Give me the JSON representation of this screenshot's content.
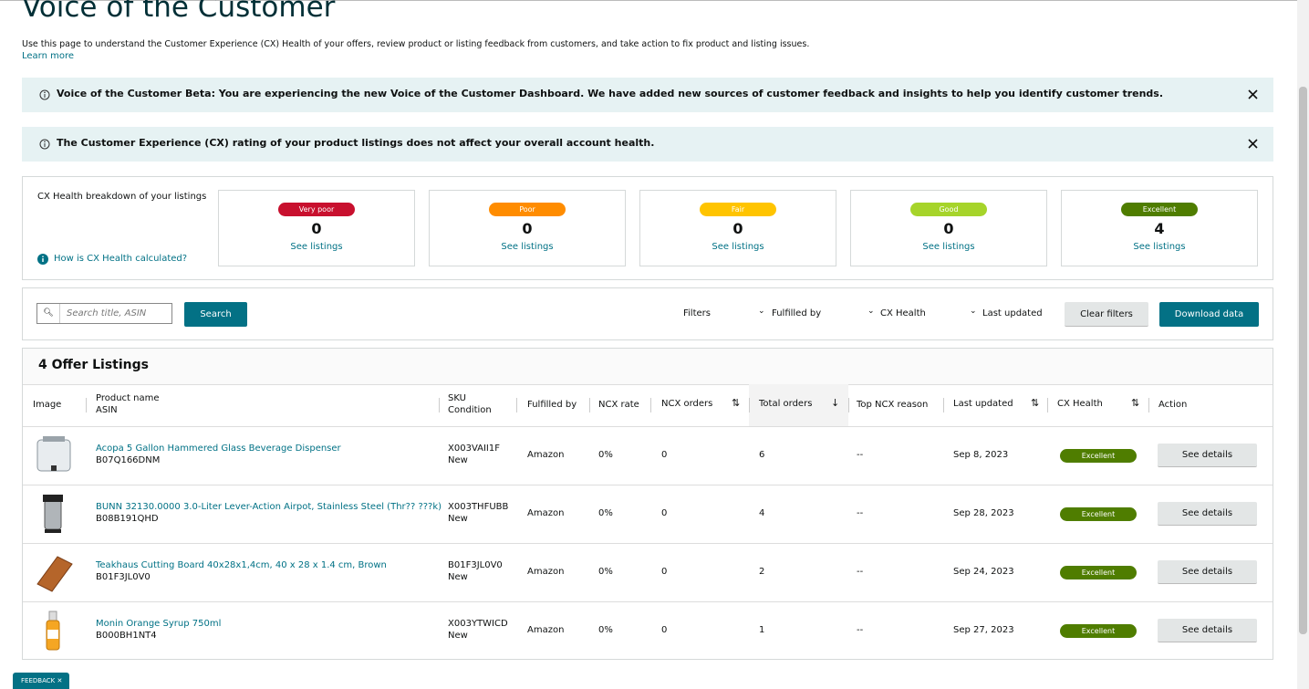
{
  "header": {
    "title": "Voice of the Customer",
    "description": "Use this page to understand the Customer Experience (CX) Health of your offers, review product or listing feedback from customers, and take action to fix product and listing issues.",
    "learn_more": "Learn more"
  },
  "banners": [
    {
      "text": "Voice of the Customer Beta: You are experiencing the new Voice of the Customer Dashboard. We have added new sources of customer feedback and insights to help you identify customer trends."
    },
    {
      "text": "The Customer Experience (CX) rating of your product listings does not affect your overall account health."
    }
  ],
  "breakdown": {
    "label": "CX Health breakdown of your listings",
    "help": "How is CX Health calculated?",
    "cards": [
      {
        "rating": "Very poor",
        "count": 0,
        "link": "See listings",
        "color": "#c8102e"
      },
      {
        "rating": "Poor",
        "count": 0,
        "link": "See listings",
        "color": "#ff8c00"
      },
      {
        "rating": "Fair",
        "count": 0,
        "link": "See listings",
        "color": "#ffc400"
      },
      {
        "rating": "Good",
        "count": 0,
        "link": "See listings",
        "color": "#a6d42a"
      },
      {
        "rating": "Excellent",
        "count": 4,
        "link": "See listings",
        "color": "#4f7d00"
      }
    ]
  },
  "toolbar": {
    "search_placeholder": "Search title, ASIN",
    "search_button": "Search",
    "filters": "Filters",
    "fulfilled_by": "Fulfilled by",
    "cx_health": "CX Health",
    "last_updated": "Last updated",
    "clear": "Clear filters",
    "download": "Download data"
  },
  "table": {
    "title": "4 Offer Listings",
    "columns": [
      "Image",
      "Product name",
      "ASIN",
      "SKU",
      "Condition",
      "Fulfilled by",
      "NCX rate",
      "NCX orders",
      "Total orders",
      "Top NCX reason",
      "Last updated",
      "CX Health",
      "Action"
    ],
    "rows": [
      {
        "name": "Acopa 5 Gallon Hammered Glass Beverage Dispenser",
        "asin": "B07Q166DNM",
        "sku": "X003VAII1F",
        "condition": "New",
        "fulfilled_by": "Amazon",
        "ncx_rate": "0%",
        "ncx_orders": 0,
        "total_orders": 6,
        "reason": "--",
        "updated": "Sep 8, 2023",
        "health": "Excellent",
        "action": "See details"
      },
      {
        "name": "BUNN 32130.0000 3.0-Liter Lever-Action Airpot, Stainless Steel (Thr?? ???k)",
        "asin": "B08B191QHD",
        "sku": "X003THFUBB",
        "condition": "New",
        "fulfilled_by": "Amazon",
        "ncx_rate": "0%",
        "ncx_orders": 0,
        "total_orders": 4,
        "reason": "--",
        "updated": "Sep 28, 2023",
        "health": "Excellent",
        "action": "See details"
      },
      {
        "name": "Teakhaus Cutting Board 40x28x1,4cm, 40 x 28 x 1.4 cm, Brown",
        "asin": "B01F3JL0V0",
        "sku": "B01F3JL0V0",
        "condition": "New",
        "fulfilled_by": "Amazon",
        "ncx_rate": "0%",
        "ncx_orders": 0,
        "total_orders": 2,
        "reason": "--",
        "updated": "Sep 24, 2023",
        "health": "Excellent",
        "action": "See details"
      },
      {
        "name": "Monin Orange Syrup 750ml",
        "asin": "B000BH1NT4",
        "sku": "X003YTWICD",
        "condition": "New",
        "fulfilled_by": "Amazon",
        "ncx_rate": "0%",
        "ncx_orders": 0,
        "total_orders": 1,
        "reason": "--",
        "updated": "Sep 27, 2023",
        "health": "Excellent",
        "action": "See details"
      }
    ]
  },
  "feedback": "FEEDBACK"
}
